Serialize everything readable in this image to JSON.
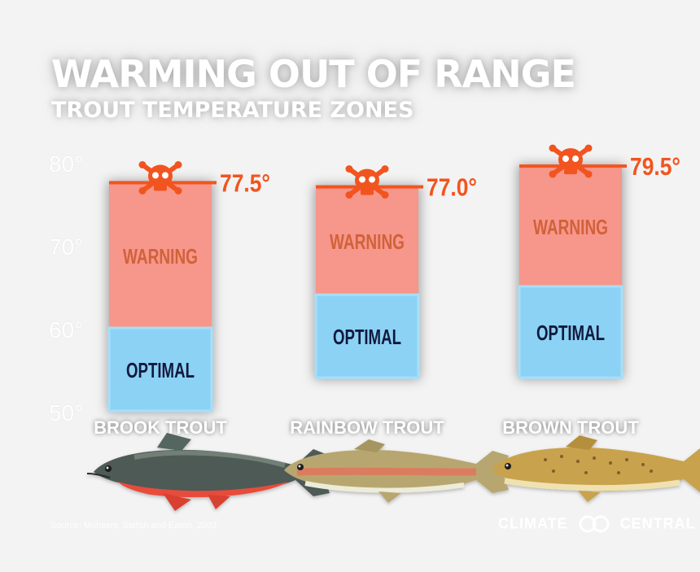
{
  "chart_data": {
    "type": "range_bar",
    "title": "WARMING OUT OF RANGE",
    "subtitle": "TROUT TEMPERATURE ZONES",
    "ylim": [
      50,
      80
    ],
    "yticks": [
      50,
      60,
      70,
      80
    ],
    "tick_suffix": "°",
    "series_labels": {
      "warning": "WARNING",
      "optimal": "OPTIMAL"
    },
    "colors": {
      "warning": "#f7968a",
      "warning_text": "#d0623a",
      "optimal": "#8cd2f5",
      "optimal_text": "#101a3c",
      "lethal": "#f2541f",
      "tick": "#ffffff"
    },
    "categories": [
      {
        "name": "BROOK TROUT",
        "optimal_min": 50,
        "optimal_max": 60,
        "lethal": 77.5,
        "lethal_label": "77.5°"
      },
      {
        "name": "RAINBOW TROUT",
        "optimal_min": 54,
        "optimal_max": 64,
        "lethal": 77.0,
        "lethal_label": "77.0°"
      },
      {
        "name": "BROWN TROUT",
        "optimal_min": 54,
        "optimal_max": 65,
        "lethal": 79.5,
        "lethal_label": "79.5°"
      }
    ],
    "lethal_icon": "skull-crossbones-icon"
  },
  "footer": {
    "source": "Source: Mohseni, Stefan and Eaton, 2003",
    "brand_left": "CLIMATE",
    "brand_right": "CENTRAL"
  }
}
